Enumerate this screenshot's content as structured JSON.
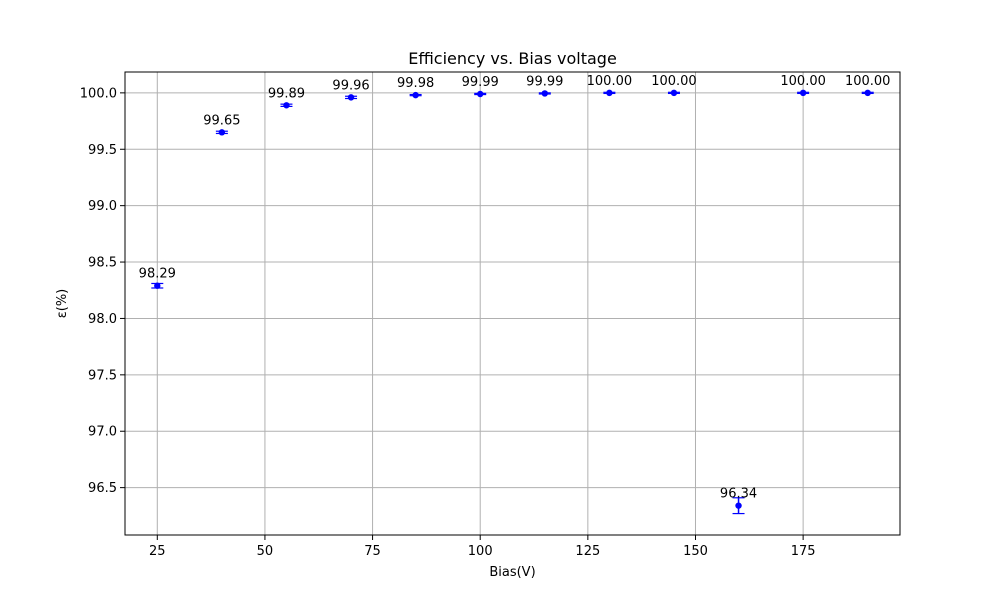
{
  "chart_data": {
    "type": "scatter",
    "title": "Efficiency vs. Bias voltage",
    "xlabel": "Bias(V)",
    "ylabel": "ε(%)",
    "xlim": [
      17.5,
      197.5
    ],
    "ylim": [
      96.08,
      100.185
    ],
    "xticks": [
      25,
      50,
      75,
      100,
      125,
      150,
      175
    ],
    "yticks": [
      96.5,
      97.0,
      97.5,
      98.0,
      98.5,
      99.0,
      99.5,
      100.0
    ],
    "ytick_labels": [
      "96.5",
      "97.0",
      "97.5",
      "98.0",
      "98.5",
      "99.0",
      "99.5",
      "100.0"
    ],
    "grid": true,
    "marker_color": "#0000ff",
    "points": [
      {
        "x": 25,
        "y": 98.29,
        "err": 0.02,
        "label": "98.29"
      },
      {
        "x": 40,
        "y": 99.65,
        "err": 0.01,
        "label": "99.65"
      },
      {
        "x": 55,
        "y": 99.89,
        "err": 0.01,
        "label": "99.89"
      },
      {
        "x": 70,
        "y": 99.96,
        "err": 0.01,
        "label": "99.96"
      },
      {
        "x": 85,
        "y": 99.98,
        "err": 0.005,
        "label": "99.98"
      },
      {
        "x": 100,
        "y": 99.99,
        "err": 0.005,
        "label": "99.99"
      },
      {
        "x": 115,
        "y": 99.995,
        "err": 0.005,
        "label": "99.99"
      },
      {
        "x": 130,
        "y": 100.0,
        "err": 0.005,
        "label": "100.00"
      },
      {
        "x": 145,
        "y": 100.0,
        "err": 0.005,
        "label": "100.00"
      },
      {
        "x": 160,
        "y": 96.34,
        "err": 0.07,
        "label": "96.34"
      },
      {
        "x": 175,
        "y": 100.0,
        "err": 0.005,
        "label": "100.00"
      },
      {
        "x": 190,
        "y": 100.0,
        "err": 0.005,
        "label": "100.00"
      }
    ]
  }
}
